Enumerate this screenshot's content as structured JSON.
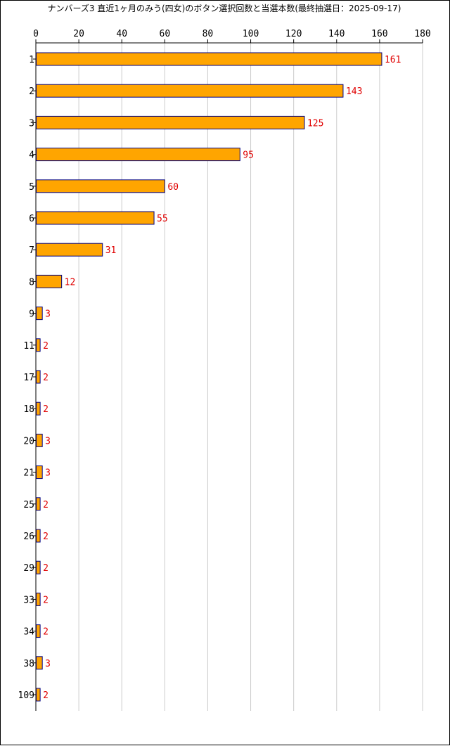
{
  "chart_data": {
    "type": "bar",
    "orientation": "horizontal",
    "title": "ナンバーズ3 直近1ヶ月のみう(四女)のボタン選択回数と当選本数(最終抽選日：2025-09-17)",
    "categories": [
      "1",
      "2",
      "3",
      "4",
      "5",
      "6",
      "7",
      "8",
      "9",
      "11",
      "17",
      "18",
      "20",
      "21",
      "25",
      "26",
      "29",
      "33",
      "34",
      "38",
      "109"
    ],
    "values": [
      161,
      143,
      125,
      95,
      60,
      55,
      31,
      12,
      3,
      2,
      2,
      2,
      3,
      3,
      2,
      2,
      2,
      2,
      2,
      3,
      2
    ],
    "xlim": [
      0,
      180
    ],
    "x_ticks": [
      0,
      20,
      40,
      60,
      80,
      100,
      120,
      140,
      160,
      180
    ],
    "axis_position": "top",
    "grid": true,
    "data_labels": true,
    "bar_color": "#ffa500",
    "bar_border_color": "#000080",
    "label_color": "#e00000",
    "grid_color": "#cccccc"
  }
}
